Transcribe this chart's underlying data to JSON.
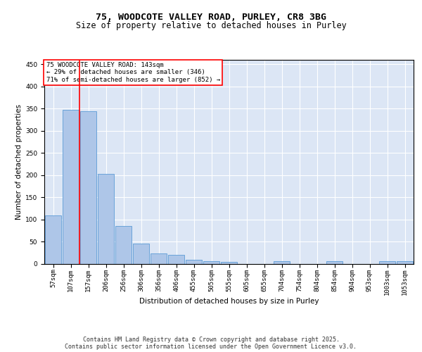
{
  "title_line1": "75, WOODCOTE VALLEY ROAD, PURLEY, CR8 3BG",
  "title_line2": "Size of property relative to detached houses in Purley",
  "xlabel": "Distribution of detached houses by size in Purley",
  "ylabel": "Number of detached properties",
  "bar_labels": [
    "57sqm",
    "107sqm",
    "157sqm",
    "206sqm",
    "256sqm",
    "306sqm",
    "356sqm",
    "406sqm",
    "455sqm",
    "505sqm",
    "555sqm",
    "605sqm",
    "655sqm",
    "704sqm",
    "754sqm",
    "804sqm",
    "854sqm",
    "904sqm",
    "953sqm",
    "1003sqm",
    "1053sqm"
  ],
  "bar_values": [
    110,
    348,
    344,
    203,
    85,
    46,
    24,
    20,
    10,
    7,
    4,
    0,
    0,
    7,
    0,
    0,
    6,
    0,
    0,
    6,
    6
  ],
  "bar_color": "#aec6e8",
  "bar_edge_color": "#5b9bd5",
  "vline_x": 1.5,
  "vline_color": "red",
  "annotation_text": "75 WOODCOTE VALLEY ROAD: 143sqm\n← 29% of detached houses are smaller (346)\n71% of semi-detached houses are larger (852) →",
  "annotation_box_color": "red",
  "annotation_text_color": "black",
  "annotation_bg": "white",
  "ylim": [
    0,
    460
  ],
  "yticks": [
    0,
    50,
    100,
    150,
    200,
    250,
    300,
    350,
    400,
    450
  ],
  "background_color": "#dce6f5",
  "grid_color": "white",
  "footer_text": "Contains HM Land Registry data © Crown copyright and database right 2025.\nContains public sector information licensed under the Open Government Licence v3.0.",
  "title_fontsize": 9.5,
  "subtitle_fontsize": 8.5,
  "label_fontsize": 7.5,
  "tick_fontsize": 6.5,
  "annotation_fontsize": 6.5,
  "footer_fontsize": 6
}
